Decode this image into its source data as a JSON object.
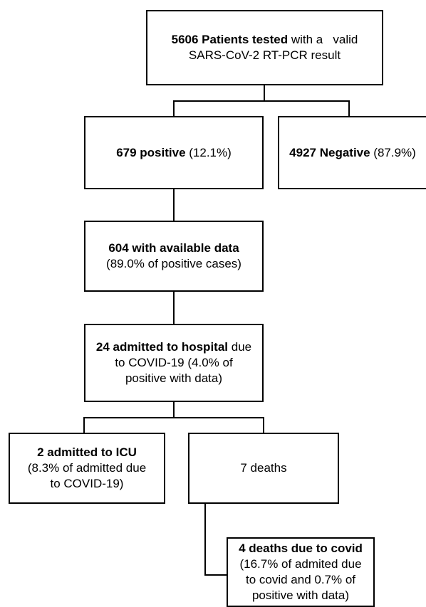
{
  "flowchart": {
    "tested": {
      "bold": "5606 Patients tested",
      "rest": " with a   valid",
      "line2": "SARS-CoV-2 RT-PCR result"
    },
    "positive": {
      "bold": "679 positive",
      "rest": " (12.1%)"
    },
    "negative": {
      "bold": "4927 Negative",
      "rest": " (87.9%)"
    },
    "available": {
      "bold": "604 with available data",
      "line2": "(89.0% of positive cases)"
    },
    "admitted": {
      "bold": "24 admitted to hospital",
      "rest": " due",
      "line2": "to COVID-19 (4.0% of",
      "line3": "positive with data)"
    },
    "icu": {
      "bold": "2 admitted to ICU",
      "line2": "(8.3% of admitted due",
      "line3": "to COVID-19)"
    },
    "deaths": {
      "text": "7 deaths"
    },
    "covid_deaths": {
      "bold": "4 deaths due to covid",
      "line2": "(16.7% of admited due",
      "line3": "to covid and 0.7% of",
      "line4": "positive with data)"
    }
  }
}
